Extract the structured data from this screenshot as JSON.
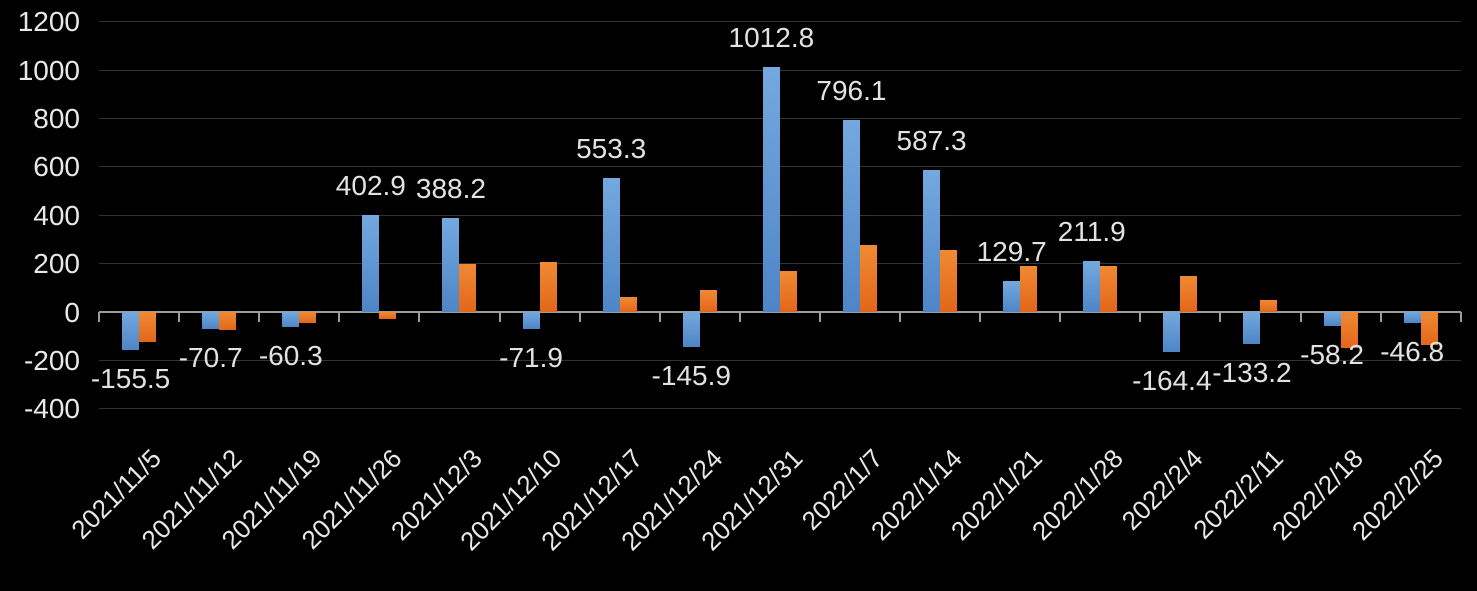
{
  "chart_data": {
    "type": "bar",
    "title": "",
    "background_color": "#000000",
    "text_color": "#e8e8e8",
    "gridline_color": "#333333",
    "axis_color": "#9e9e9e",
    "grid": true,
    "legend": "none",
    "categories": [
      "2021/11/5",
      "2021/11/12",
      "2021/11/19",
      "2021/11/26",
      "2021/12/3",
      "2021/12/10",
      "2021/12/17",
      "2021/12/24",
      "2021/12/31",
      "2022/1/7",
      "2022/1/14",
      "2022/1/21",
      "2022/1/28",
      "2022/2/4",
      "2022/2/11",
      "2022/2/18",
      "2022/2/25"
    ],
    "series": [
      {
        "name": "blue-series",
        "color": "#5b9bd5",
        "values": [
          -155.5,
          -70.7,
          -60.3,
          402.9,
          388.2,
          -71.9,
          553.3,
          -145.9,
          1012.8,
          796.1,
          587.3,
          129.7,
          211.9,
          -164.4,
          -133.2,
          -58.2,
          -46.8
        ],
        "data_labels": [
          "-155.5",
          "-70.7",
          "-60.3",
          "402.9",
          "388.2",
          "-71.9",
          "553.3",
          "-145.9",
          "1012.8",
          "796.1",
          "587.3",
          "129.7",
          "211.9",
          "-164.4",
          "-133.2",
          "-58.2",
          "-46.8"
        ],
        "labels_visible": true
      },
      {
        "name": "orange-series",
        "color": "#ed7d31",
        "values": [
          -125,
          -76,
          -45,
          -30,
          200,
          207,
          62,
          90,
          170,
          276,
          258,
          192,
          190,
          150,
          50,
          -148,
          -135
        ],
        "labels_visible": false
      }
    ],
    "y_axis": {
      "min": -400,
      "max": 1200,
      "step": 200,
      "tick_labels": [
        "1200",
        "1000",
        "800",
        "600",
        "400",
        "200",
        "0",
        "-200",
        "-400"
      ]
    },
    "x_axis": {
      "rotation_deg": -45,
      "tick_labels": [
        "2021/11/5",
        "2021/11/12",
        "2021/11/19",
        "2021/11/26",
        "2021/12/3",
        "2021/12/10",
        "2021/12/17",
        "2021/12/24",
        "2021/12/31",
        "2022/1/7",
        "2022/1/14",
        "2022/1/21",
        "2022/1/28",
        "2022/2/4",
        "2022/2/11",
        "2022/2/18",
        "2022/2/25"
      ]
    }
  }
}
